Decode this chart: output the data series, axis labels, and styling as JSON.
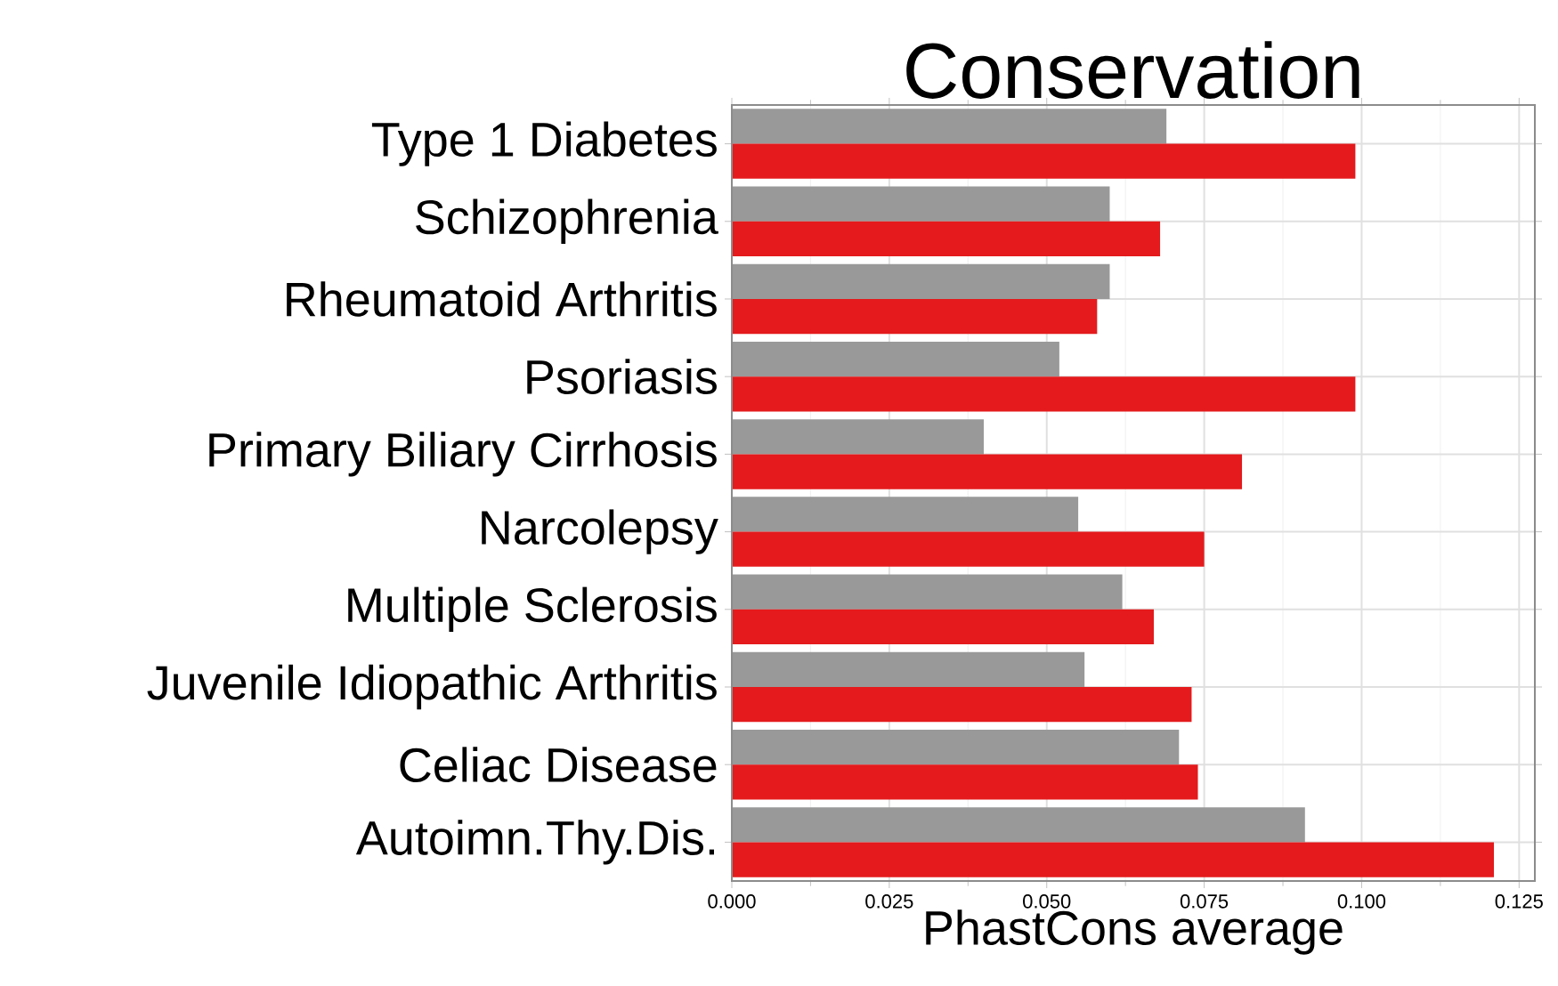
{
  "chart_data": {
    "type": "bar",
    "orientation": "horizontal",
    "title": "Conservation",
    "xlabel": "PhastCons average",
    "categories": [
      "Type 1 Diabetes",
      "Schizophrenia",
      "Rheumatoid Arthritis",
      "Psoriasis",
      "Primary Biliary Cirrhosis",
      "Narcolepsy",
      "Multiple Sclerosis",
      "Juvenile Idiopathic Arthritis",
      "Celiac Disease",
      "Autoimn.Thy.Dis."
    ],
    "series": [
      {
        "color": "#999999",
        "values": [
          0.069,
          0.06,
          0.06,
          0.052,
          0.04,
          0.055,
          0.062,
          0.056,
          0.071,
          0.091
        ]
      },
      {
        "color": "#e41a1c",
        "values": [
          0.099,
          0.068,
          0.058,
          0.099,
          0.081,
          0.075,
          0.067,
          0.073,
          0.074,
          0.121
        ]
      }
    ],
    "xlim": [
      0,
      0.1275
    ],
    "xticks": [
      {
        "value": 0,
        "label": "0.000"
      },
      {
        "value": 0.025,
        "label": "0.025"
      },
      {
        "value": 0.05,
        "label": "0.050"
      },
      {
        "value": 0.075,
        "label": "0.075"
      },
      {
        "value": 0.1,
        "label": "0.100"
      },
      {
        "value": 0.125,
        "label": "0.125"
      }
    ],
    "grid": true
  }
}
